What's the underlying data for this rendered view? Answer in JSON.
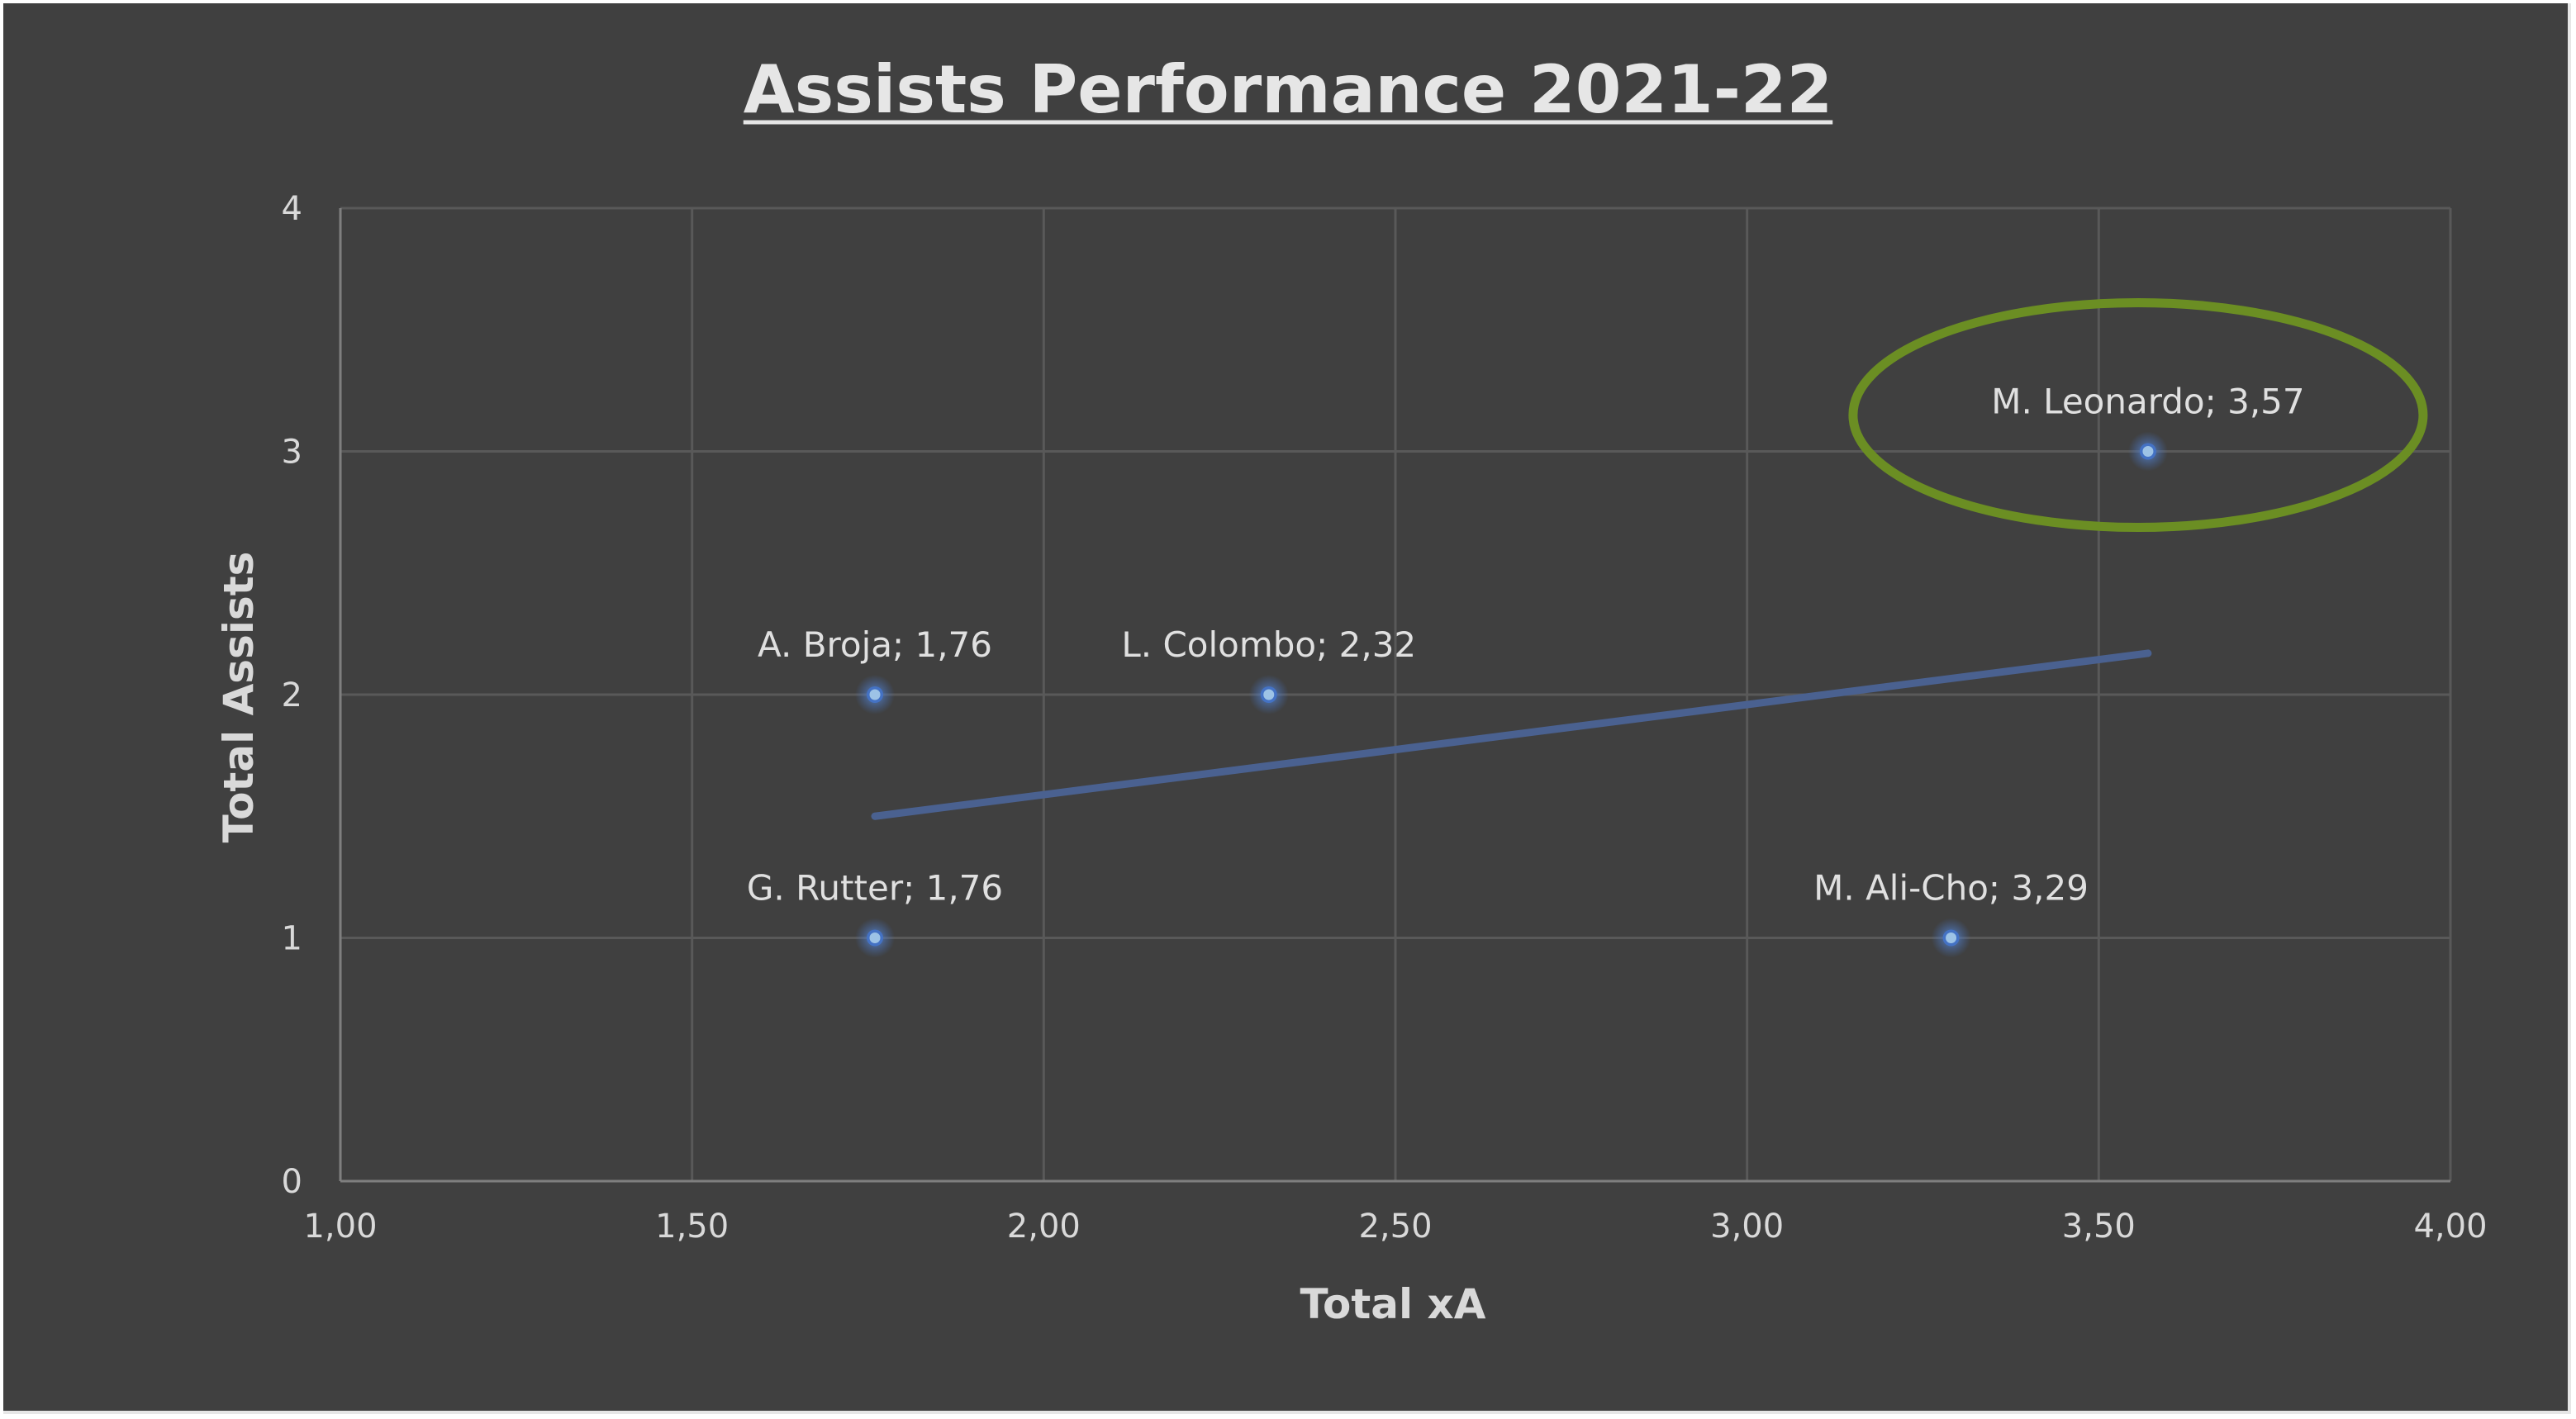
{
  "chart_data": {
    "type": "scatter",
    "title": "Assists Performance 2021-22",
    "xlabel": "Total xA",
    "ylabel": "Total Assists",
    "xlim": [
      1.0,
      4.0
    ],
    "ylim": [
      0,
      4
    ],
    "x_ticks": [
      "1,00",
      "1,50",
      "2,00",
      "2,50",
      "3,00",
      "3,50",
      "4,00"
    ],
    "y_ticks": [
      "0",
      "1",
      "2",
      "3",
      "4"
    ],
    "grid": true,
    "legend": "none",
    "points": [
      {
        "x": 1.76,
        "y": 2,
        "label": "A. Broja; 1,76"
      },
      {
        "x": 2.32,
        "y": 2,
        "label": "L. Colombo; 2,32"
      },
      {
        "x": 1.76,
        "y": 1,
        "label": "G. Rutter; 1,76"
      },
      {
        "x": 3.29,
        "y": 1,
        "label": "M. Ali-Cho; 3,29"
      },
      {
        "x": 3.57,
        "y": 3,
        "label": "M. Leonardo; 3,57"
      }
    ],
    "trendline": {
      "type": "linear",
      "x": [
        1.76,
        3.57
      ],
      "y": [
        1.5,
        2.17
      ]
    },
    "highlight": {
      "point_label": "M. Leonardo; 3,57",
      "shape": "ellipse",
      "color": "#6b8e23"
    },
    "colors": {
      "background": "#404040",
      "gridline": "#595959",
      "axis_line": "#7f7f7f",
      "marker": "#9dc3e6",
      "marker_glow": "#4472c4",
      "trendline": "#4a6190",
      "text": "#d9d9d9"
    }
  }
}
